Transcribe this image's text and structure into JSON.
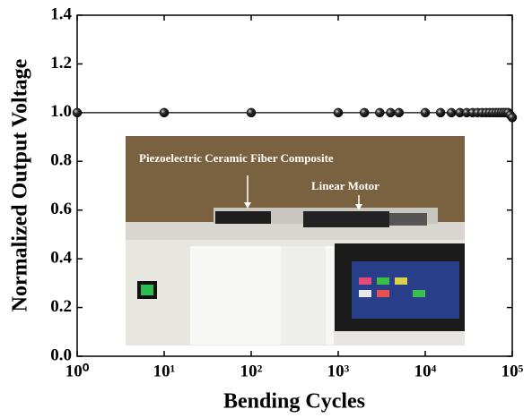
{
  "chart_data": {
    "type": "scatter-line",
    "xlabel": "Bending Cycles",
    "ylabel": "Normalized Output Voltage",
    "x": [
      1,
      10,
      100,
      1000,
      2000,
      3000,
      4000,
      5000,
      10000,
      15000,
      20000,
      25000,
      30000,
      35000,
      40000,
      45000,
      50000,
      55000,
      60000,
      65000,
      70000,
      75000,
      80000,
      85000,
      90000,
      95000,
      100000
    ],
    "values": [
      1.0,
      1.0,
      1.0,
      1.0,
      1.0,
      1.0,
      1.0,
      1.0,
      1.0,
      1.0,
      1.0,
      1.0,
      1.0,
      1.0,
      1.0,
      1.0,
      1.0,
      1.0,
      1.0,
      1.0,
      1.0,
      1.0,
      1.0,
      1.0,
      1.0,
      0.99,
      0.98
    ],
    "color": "#000000",
    "xscale": "log",
    "xlim": [
      1,
      100000
    ],
    "xticks": [
      {
        "value": 1,
        "label": "10⁰"
      },
      {
        "value": 10,
        "label": "10¹"
      },
      {
        "value": 100,
        "label": "10²"
      },
      {
        "value": 1000,
        "label": "10³"
      },
      {
        "value": 10000,
        "label": "10⁴"
      },
      {
        "value": 100000,
        "label": "10⁵"
      }
    ],
    "ylim": [
      0,
      1.4
    ],
    "yticks": [
      {
        "value": 0,
        "label": "0.0"
      },
      {
        "value": 0.2,
        "label": "0.2"
      },
      {
        "value": 0.4,
        "label": "0.4"
      },
      {
        "value": 0.6,
        "label": "0.6"
      },
      {
        "value": 0.8,
        "label": "0.8"
      },
      {
        "value": 1.0,
        "label": "1.0"
      },
      {
        "value": 1.2,
        "label": "1.2"
      },
      {
        "value": 1.4,
        "label": "1.4"
      }
    ],
    "annotations": [
      "Piezoelectric Ceramic Fiber Composite",
      "Linear Motor"
    ]
  }
}
